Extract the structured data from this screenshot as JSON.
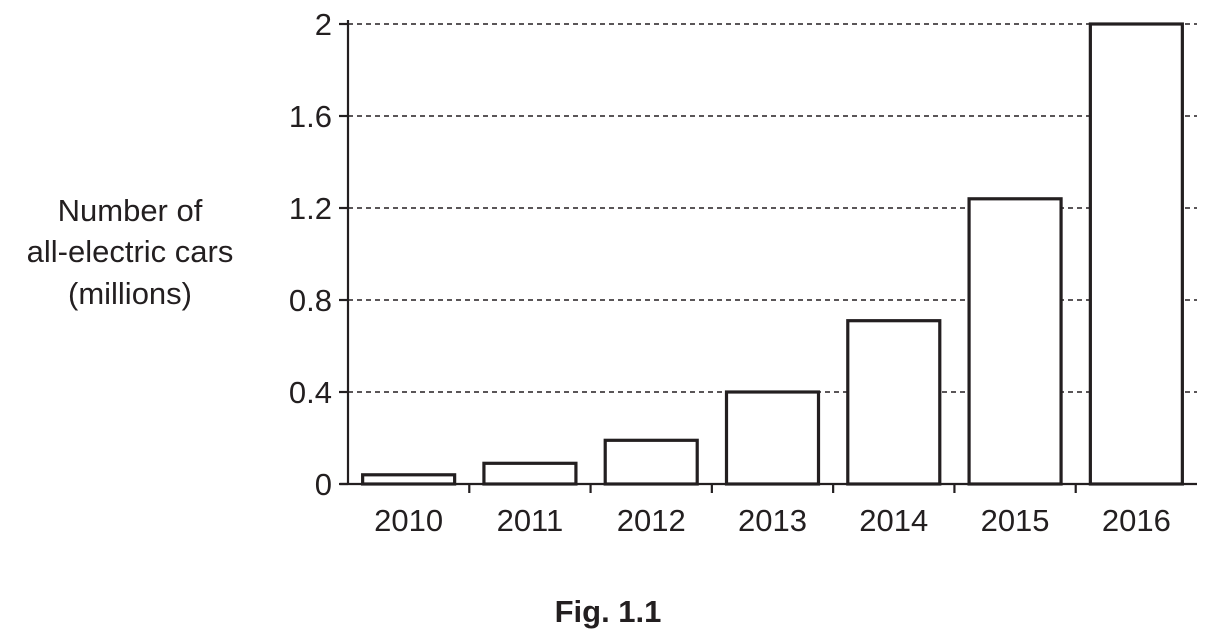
{
  "chart_data": {
    "type": "bar",
    "title": "",
    "xlabel": "",
    "ylabel_lines": [
      "Number of",
      "all-electric cars",
      "(millions)"
    ],
    "categories": [
      "2010",
      "2011",
      "2012",
      "2013",
      "2014",
      "2015",
      "2016"
    ],
    "values": [
      0.04,
      0.09,
      0.19,
      0.4,
      0.71,
      1.24,
      2.0
    ],
    "ylim": [
      0,
      2
    ],
    "yticks": [
      "0",
      "0.4",
      "0.8",
      "1.2",
      "1.6",
      "2"
    ],
    "yticks_values": [
      0,
      0.4,
      0.8,
      1.2,
      1.6,
      2
    ],
    "grid": "dashed horizontal",
    "legend": "none",
    "bar_fill": "#ffffff",
    "stroke_color": "#231f20"
  },
  "caption": "Fig. 1.1"
}
